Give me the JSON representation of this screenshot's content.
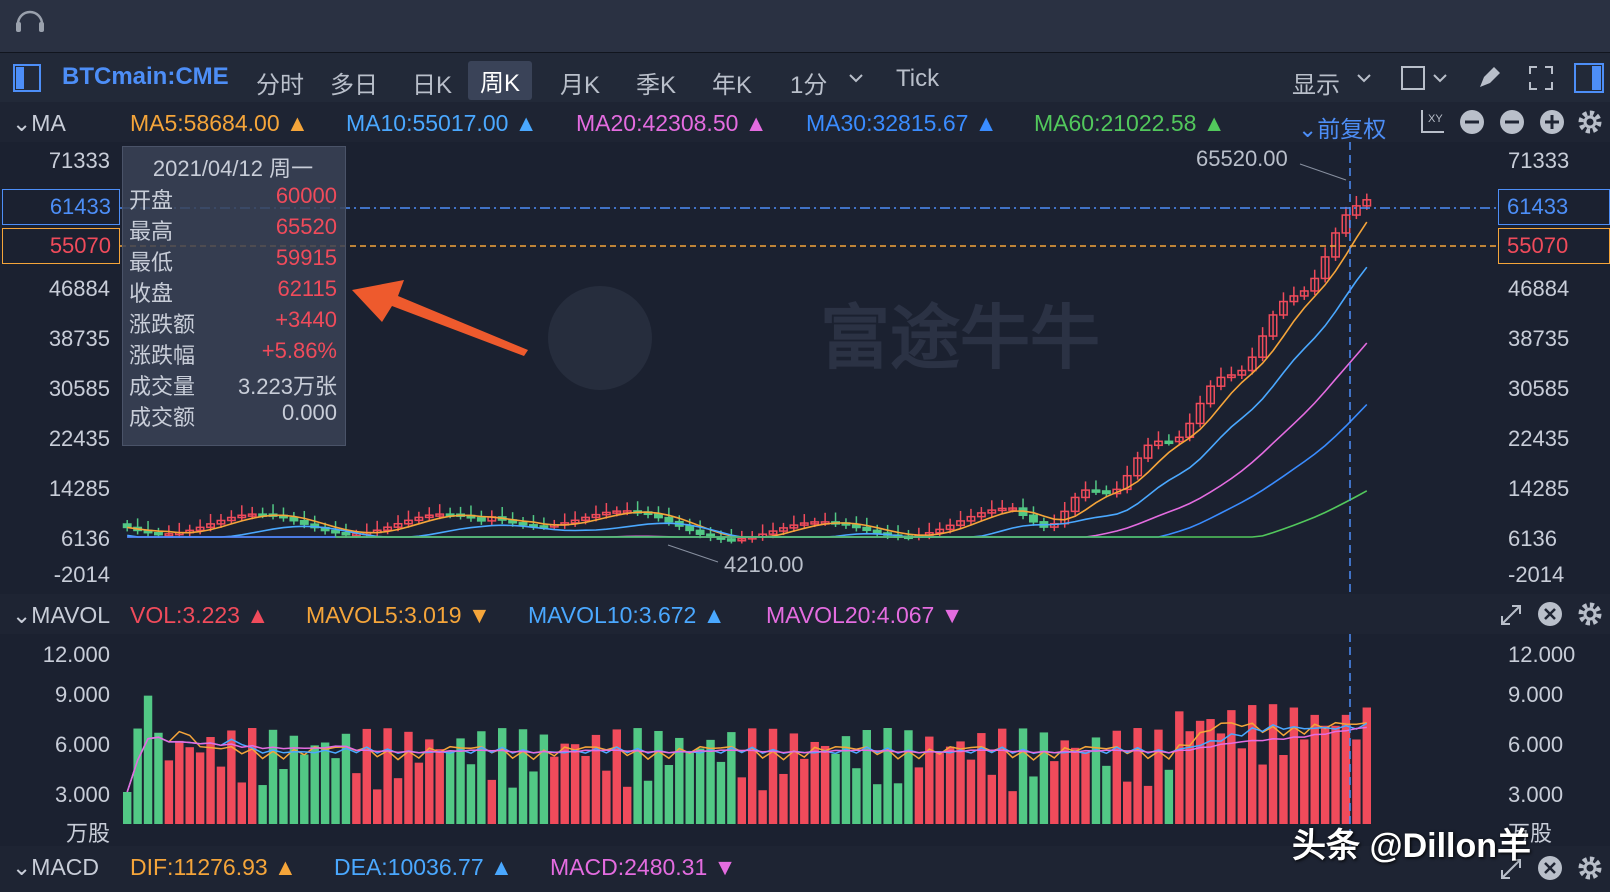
{
  "toolbar": {
    "symbol": "BTCmain:CME",
    "tabs": [
      "分时",
      "多日",
      "日K",
      "周K",
      "月K",
      "季K",
      "年K",
      "1分",
      "Tick"
    ],
    "active_tab": "周K",
    "display_label": "显示"
  },
  "ma_bar": {
    "label": "MA",
    "items": [
      {
        "text": "MA5:58684.00",
        "color": "#f5a53a"
      },
      {
        "text": "MA10:55017.00",
        "color": "#4aa8ff"
      },
      {
        "text": "MA20:42308.50",
        "color": "#e46ce0"
      },
      {
        "text": "MA30:32815.67",
        "color": "#3a8cff"
      },
      {
        "text": "MA60:21022.58",
        "color": "#52c85c"
      }
    ],
    "adjust_label": "前复权"
  },
  "price_axis": {
    "ticks": [
      "71333",
      "46884",
      "38735",
      "30585",
      "22435",
      "14285",
      "6136",
      "-2014"
    ],
    "hline_blue": "61433",
    "hline_orange": "55070"
  },
  "tooltip": {
    "date": "2021/04/12 周一",
    "rows": [
      {
        "label": "开盘",
        "value": "60000",
        "color": "#f04b5b"
      },
      {
        "label": "最高",
        "value": "65520",
        "color": "#f04b5b"
      },
      {
        "label": "最低",
        "value": "59915",
        "color": "#f04b5b"
      },
      {
        "label": "收盘",
        "value": "62115",
        "color": "#f04b5b"
      },
      {
        "label": "涨跌额",
        "value": "+3440",
        "color": "#f04b5b"
      },
      {
        "label": "涨跌幅",
        "value": "+5.86%",
        "color": "#f04b5b"
      },
      {
        "label": "成交量",
        "value": "3.223万张",
        "color": "#c8cdd8"
      },
      {
        "label": "成交额",
        "value": "0.000",
        "color": "#c8cdd8"
      }
    ]
  },
  "annotations": {
    "high": "65520.00",
    "low": "4210.00"
  },
  "watermark_logo": "富途牛牛",
  "mavol_bar": {
    "label": "MAVOL",
    "items": [
      {
        "text": "VOL:3.223",
        "color": "#f04b5b"
      },
      {
        "text": "MAVOL5:3.019",
        "color": "#f5a53a"
      },
      {
        "text": "MAVOL10:3.672",
        "color": "#4aa8ff"
      },
      {
        "text": "MAVOL20:4.067",
        "color": "#e46ce0"
      }
    ]
  },
  "volume_axis": {
    "ticks": [
      "12.000",
      "9.000",
      "6.000",
      "3.000"
    ],
    "unit": "万股"
  },
  "macd_bar": {
    "label": "MACD",
    "items": [
      {
        "text": "DIF:11276.93",
        "color": "#f5a53a"
      },
      {
        "text": "DEA:10036.77",
        "color": "#4aa8ff"
      },
      {
        "text": "MACD:2480.31",
        "color": "#e46ce0"
      }
    ]
  },
  "credit": "头条 @Dillon羊",
  "colors": {
    "up": "#f04b5b",
    "down": "#52c885",
    "bg": "#1b2130"
  }
}
